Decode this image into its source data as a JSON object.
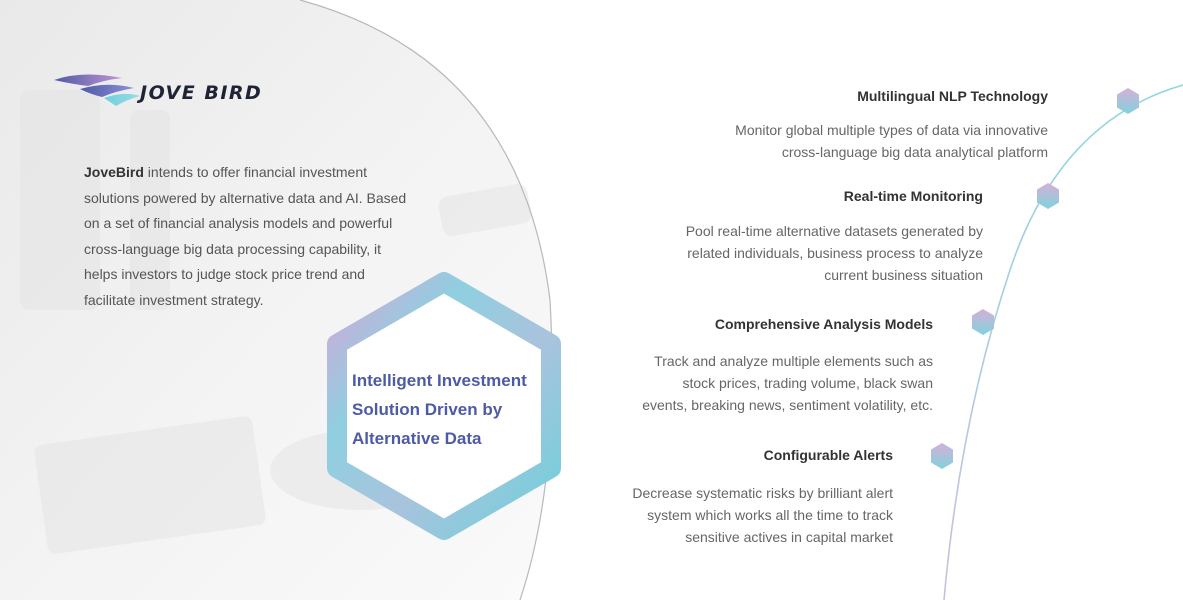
{
  "brand": {
    "logo_text": "JOVE BIRD",
    "name": "JoveBird",
    "colors": {
      "accent_blue": "#4d5aa6",
      "accent_cyan": "#6fd0dc",
      "accent_pink": "#d3a9d9"
    }
  },
  "intro": {
    "text": " intends to offer financial investment solutions powered by alternative data and AI. Based on a set of financial analysis models and powerful cross-language big data processing capability, it helps investors to judge stock price trend and facilitate investment strategy."
  },
  "hero": {
    "lines": [
      "Intelligent Investment",
      "Solution Driven by",
      "Alternative Data"
    ]
  },
  "features": [
    {
      "title": "Multilingual NLP Technology",
      "desc": [
        "Monitor global multiple types of data  via innovative",
        "cross-language big data analytical platform"
      ]
    },
    {
      "title": "Real-time Monitoring",
      "desc": [
        "Pool real-time alternative datasets generated by",
        "related individuals, business process to analyze",
        "current business situation"
      ]
    },
    {
      "title": "Comprehensive Analysis Models",
      "desc": [
        "Track and analyze multiple elements such as",
        "stock prices, trading volume, black swan",
        "events, breaking news, sentiment volatility, etc."
      ]
    },
    {
      "title": "Configurable Alerts",
      "desc": [
        "Decrease systematic risks by brilliant alert",
        "system which works all the time to track",
        "sensitive actives in capital market"
      ]
    }
  ],
  "icons": {
    "timeline_markers": "hexagon-icon",
    "logo_mark": "bird-wing-logo-icon"
  }
}
